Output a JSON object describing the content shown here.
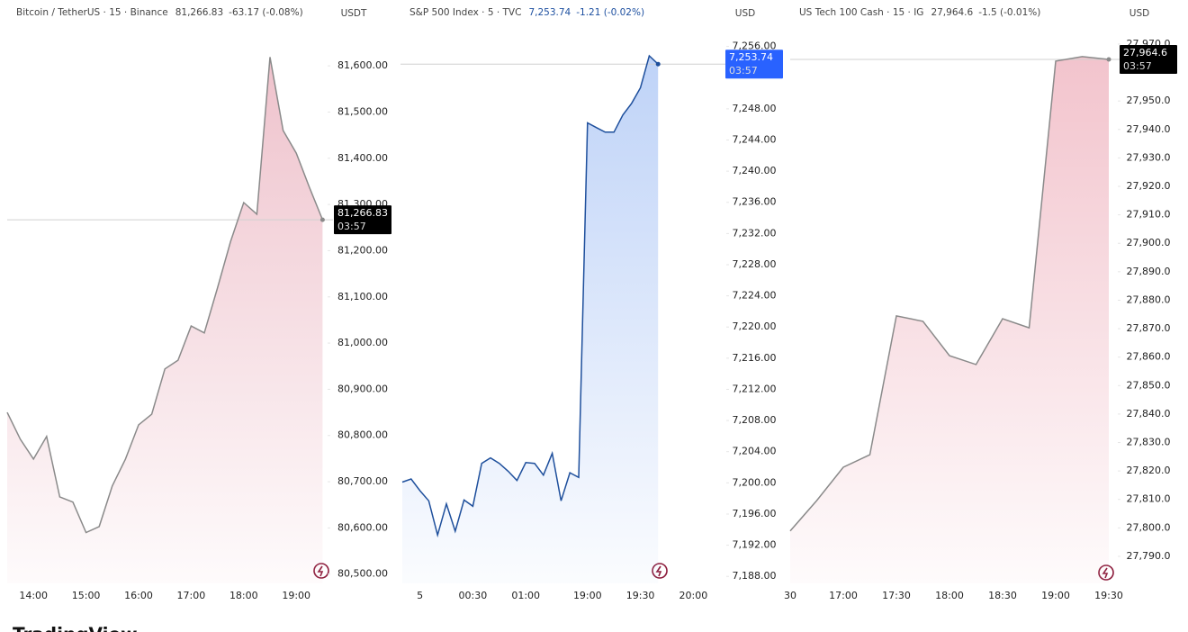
{
  "chart_data": [
    {
      "type": "area",
      "title": "Bitcoin / TetherUS · 15 · Binance",
      "price": "81,266.83",
      "change": "-63.17 (-0.08%)",
      "unit": "USDT",
      "quote_color": "#444444",
      "categories": [
        null,
        null,
        "14:00",
        null,
        null,
        null,
        "15:00",
        null,
        null,
        null,
        "16:00",
        null,
        null,
        null,
        "17:00",
        null,
        null,
        null,
        "18:00",
        null,
        null,
        null,
        "19:00",
        null,
        null
      ],
      "values": [
        80850,
        80792,
        80749,
        80798,
        80667,
        80656,
        80590,
        80603,
        80691,
        80749,
        80823,
        80846,
        80944,
        80963,
        81037,
        81022,
        81119,
        81220,
        81304,
        81279,
        81619,
        81460,
        81411,
        81337,
        81266.83
      ],
      "color": "#8a8a8a",
      "fill_color": "#e9aebb",
      "ylim": [
        80480,
        81684
      ],
      "yticks": [
        {
          "value": 80500,
          "label": "80,500.00"
        },
        {
          "value": 80600,
          "label": "80,600.00"
        },
        {
          "value": 80700,
          "label": "80,700.00"
        },
        {
          "value": 80800,
          "label": "80,800.00"
        },
        {
          "value": 80900,
          "label": "80,900.00"
        },
        {
          "value": 81000,
          "label": "81,000.00"
        },
        {
          "value": 81100,
          "label": "81,100.00"
        },
        {
          "value": 81200,
          "label": "81,200.00"
        },
        {
          "value": 81300,
          "label": "81,300.00"
        },
        {
          "value": 81400,
          "label": "81,400.00"
        },
        {
          "value": 81500,
          "label": "81,500.00"
        },
        {
          "value": 81600,
          "label": "81,600.00"
        }
      ],
      "badge": {
        "value": 81266.83,
        "label": "81,266.83",
        "timer": "03:57",
        "color": "#000000"
      }
    },
    {
      "type": "area",
      "title": "S&P 500 Index · 5 · TVC",
      "price": "7,253.74",
      "change": "-1.21 (-0.02%)",
      "unit": "USD",
      "quote_color": "#1e50a0",
      "categories": [
        null,
        null,
        "5",
        null,
        null,
        null,
        null,
        null,
        "00:30",
        null,
        null,
        null,
        null,
        null,
        "01:00",
        null,
        null,
        null,
        null,
        null,
        null,
        "19:00",
        null,
        null,
        null,
        null,
        null,
        "19:30",
        null,
        null,
        null,
        null,
        null,
        "20:00"
      ],
      "values": [
        7200.1,
        7200.5,
        7199.0,
        7197.7,
        7193.3,
        7197.3,
        7193.8,
        7197.8,
        7197.0,
        7202.5,
        7203.2,
        7202.5,
        7201.5,
        7200.3,
        7202.6,
        7202.5,
        7201.0,
        7203.8,
        7197.7,
        7201.3,
        7200.7,
        7246.2,
        7245.6,
        7245.0,
        7245.0,
        7247.2,
        7248.7,
        7250.7,
        7254.8,
        7253.74,
        null,
        null,
        null,
        null
      ],
      "color": "#1e4f9c",
      "fill_color": "#a9c4f5",
      "ylim": [
        7187.1,
        7258.5
      ],
      "yticks": [
        {
          "value": 7188,
          "label": "7,188.00"
        },
        {
          "value": 7192,
          "label": "7,192.00"
        },
        {
          "value": 7196,
          "label": "7,196.00"
        },
        {
          "value": 7200,
          "label": "7,200.00"
        },
        {
          "value": 7204,
          "label": "7,204.00"
        },
        {
          "value": 7208,
          "label": "7,208.00"
        },
        {
          "value": 7212,
          "label": "7,212.00"
        },
        {
          "value": 7216,
          "label": "7,216.00"
        },
        {
          "value": 7220,
          "label": "7,220.00"
        },
        {
          "value": 7224,
          "label": "7,224.00"
        },
        {
          "value": 7228,
          "label": "7,228.00"
        },
        {
          "value": 7232,
          "label": "7,232.00"
        },
        {
          "value": 7236,
          "label": "7,236.00"
        },
        {
          "value": 7240,
          "label": "7,240.00"
        },
        {
          "value": 7244,
          "label": "7,244.00"
        },
        {
          "value": 7248,
          "label": "7,248.00"
        },
        {
          "value": 7256,
          "label": "7,256.00"
        }
      ],
      "badge": {
        "value": 7253.74,
        "label": "7,253.74",
        "timer": "03:57",
        "color": "#2962ff"
      }
    },
    {
      "type": "area",
      "title": "US Tech 100 Cash · 15 · IG",
      "price": "27,964.6",
      "change": "-1.5 (-0.01%)",
      "unit": "USD",
      "quote_color": "#444444",
      "categories": [
        "30",
        null,
        "17:00",
        null,
        "17:30",
        null,
        "18:00",
        null,
        "18:30",
        null,
        "19:00",
        null,
        "19:30"
      ],
      "values": [
        27798.9,
        27809.6,
        27821.3,
        27825.7,
        27874.5,
        27872.6,
        27860.5,
        27857.4,
        27873.5,
        27870.3,
        27964.0,
        27965.6,
        27964.6
      ],
      "color": "#8a8a8a",
      "fill_color": "#eeb0bc",
      "ylim": [
        27780.5,
        27976
      ],
      "yticks": [
        {
          "value": 27790,
          "label": "27,790.0"
        },
        {
          "value": 27800,
          "label": "27,800.0"
        },
        {
          "value": 27810,
          "label": "27,810.0"
        },
        {
          "value": 27820,
          "label": "27,820.0"
        },
        {
          "value": 27830,
          "label": "27,830.0"
        },
        {
          "value": 27840,
          "label": "27,840.0"
        },
        {
          "value": 27850,
          "label": "27,850.0"
        },
        {
          "value": 27860,
          "label": "27,860.0"
        },
        {
          "value": 27870,
          "label": "27,870.0"
        },
        {
          "value": 27880,
          "label": "27,880.0"
        },
        {
          "value": 27890,
          "label": "27,890.0"
        },
        {
          "value": 27900,
          "label": "27,900.0"
        },
        {
          "value": 27910,
          "label": "27,910.0"
        },
        {
          "value": 27920,
          "label": "27,920.0"
        },
        {
          "value": 27930,
          "label": "27,930.0"
        },
        {
          "value": 27940,
          "label": "27,940.0"
        },
        {
          "value": 27950,
          "label": "27,950.0"
        },
        {
          "value": 27970,
          "label": "27,970.0"
        }
      ],
      "badge": {
        "value": 27964.6,
        "label": "27,964.6",
        "timer": "03:57",
        "color": "#000000"
      }
    }
  ],
  "brand": "TradingView"
}
